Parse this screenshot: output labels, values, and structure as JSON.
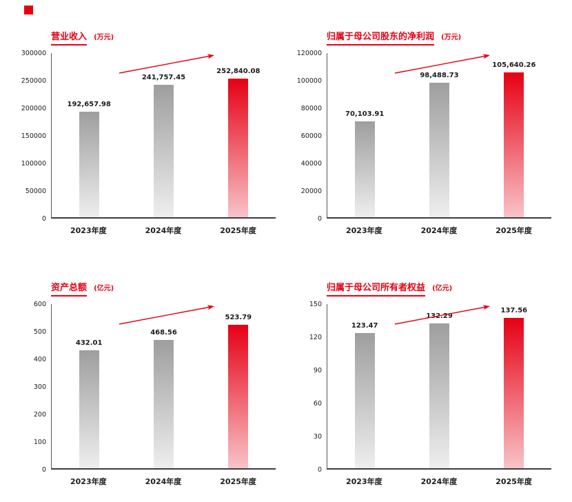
{
  "page": {
    "background": "#ffffff",
    "accent_color": "#e60012"
  },
  "style": {
    "accent": "#e60012",
    "gray_bar_top": "#9e9e9e",
    "gray_bar_bottom": "#eeeeee",
    "red_bar_top": "#e60014",
    "red_bar_bottom": "#f8c3c8",
    "axis_color": "#3c3c3c",
    "text_color": "#1c1c1c"
  },
  "chart_data": [
    {
      "type": "bar",
      "title": "营业收入",
      "unit": "(万元)",
      "categories": [
        "2023年度",
        "2024年度",
        "2025年度"
      ],
      "values": [
        192657.98,
        241757.45,
        252840.08
      ],
      "value_labels": [
        "192,657.98",
        "241,757.45",
        "252,840.08"
      ],
      "ylim": [
        0,
        300000
      ],
      "yticks": [
        0,
        50000,
        100000,
        150000,
        200000,
        250000,
        300000
      ],
      "highlight_index": 2,
      "grid": false,
      "legend": false,
      "annotation": "upward red trend arrow"
    },
    {
      "type": "bar",
      "title": "归属于母公司股东的净利润",
      "unit": "(万元)",
      "categories": [
        "2023年度",
        "2024年度",
        "2025年度"
      ],
      "values": [
        70103.91,
        98488.73,
        105640.26
      ],
      "value_labels": [
        "70,103.91",
        "98,488.73",
        "105,640.26"
      ],
      "ylim": [
        0,
        120000
      ],
      "yticks": [
        0,
        20000,
        40000,
        60000,
        80000,
        100000,
        120000
      ],
      "highlight_index": 2,
      "grid": false,
      "legend": false,
      "annotation": "upward red trend arrow"
    },
    {
      "type": "bar",
      "title": "资产总额",
      "unit": "(亿元)",
      "categories": [
        "2023年度",
        "2024年度",
        "2025年度"
      ],
      "values": [
        432.01,
        468.56,
        523.79
      ],
      "value_labels": [
        "432.01",
        "468.56",
        "523.79"
      ],
      "ylim": [
        0,
        600
      ],
      "yticks": [
        0,
        100,
        200,
        300,
        400,
        500,
        600
      ],
      "highlight_index": 2,
      "grid": false,
      "legend": false,
      "annotation": "upward red trend arrow"
    },
    {
      "type": "bar",
      "title": "归属于母公司所有者权益",
      "unit": "(亿元)",
      "categories": [
        "2023年度",
        "2024年度",
        "2025年度"
      ],
      "values": [
        123.47,
        132.29,
        137.56
      ],
      "value_labels": [
        "123.47",
        "132.29",
        "137.56"
      ],
      "ylim": [
        0,
        150
      ],
      "yticks": [
        0,
        30,
        60,
        90,
        120,
        150
      ],
      "highlight_index": 2,
      "grid": false,
      "legend": false,
      "annotation": "upward red trend arrow"
    }
  ]
}
